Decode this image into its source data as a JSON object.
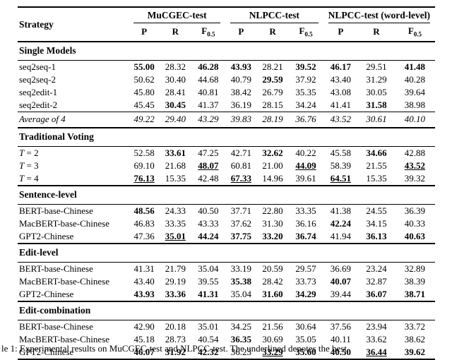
{
  "page": {
    "background": "#ffffff",
    "text_color": "#000000"
  },
  "table": {
    "strategy_header": "Strategy",
    "groups": [
      {
        "label": "MuCGEC-test"
      },
      {
        "label": "NLPCC-test"
      },
      {
        "label": "NLPCC-test (word-level)"
      }
    ],
    "metrics": [
      {
        "t": "P"
      },
      {
        "t": "R"
      },
      {
        "t": "F",
        "sub": "0.5"
      }
    ],
    "sections": [
      {
        "title": "Single Models",
        "rows": [
          {
            "label": "seq2seq-1",
            "values": [
              "55.00",
              "28.32",
              "46.28",
              "43.93",
              "28.21",
              "39.52",
              "46.17",
              "29.51",
              "41.48"
            ],
            "styles": [
              "b",
              "",
              "b",
              "b",
              "",
              "b",
              "b",
              "",
              "b"
            ]
          },
          {
            "label": "seq2seq-2",
            "values": [
              "50.62",
              "30.40",
              "44.68",
              "40.79",
              "29.59",
              "37.92",
              "43.40",
              "31.29",
              "40.28"
            ],
            "styles": [
              "",
              "",
              "",
              "",
              "b",
              "",
              "",
              "",
              ""
            ]
          },
          {
            "label": "seq2edit-1",
            "values": [
              "45.80",
              "28.41",
              "40.81",
              "38.42",
              "26.79",
              "35.35",
              "43.08",
              "30.05",
              "39.64"
            ],
            "styles": [
              "",
              "",
              "",
              "",
              "",
              "",
              "",
              "",
              ""
            ]
          },
          {
            "label": "seq2edit-2",
            "values": [
              "45.45",
              "30.45",
              "41.37",
              "36.19",
              "28.15",
              "34.24",
              "41.41",
              "31.58",
              "38.98"
            ],
            "styles": [
              "",
              "b",
              "",
              "",
              "",
              "",
              "",
              "b",
              ""
            ]
          }
        ]
      },
      {
        "title": "",
        "italic": true,
        "rows": [
          {
            "label": "Average of 4",
            "values": [
              "49.22",
              "29.40",
              "43.29",
              "39.83",
              "28.19",
              "36.76",
              "43.52",
              "30.61",
              "40.10"
            ],
            "styles": [
              "",
              "",
              "",
              "",
              "",
              "",
              "",
              "",
              ""
            ]
          }
        ]
      },
      {
        "title": "Traditional Voting",
        "rows": [
          {
            "label": "T = 2",
            "math": true,
            "values": [
              "52.58",
              "33.61",
              "47.25",
              "42.71",
              "32.62",
              "40.22",
              "45.58",
              "34.66",
              "42.88"
            ],
            "styles": [
              "",
              "b",
              "",
              "",
              "b",
              "",
              "",
              "b",
              ""
            ]
          },
          {
            "label": "T = 3",
            "math": true,
            "values": [
              "69.10",
              "21.68",
              "48.07",
              "60.81",
              "21.00",
              "44.09",
              "58.39",
              "21.55",
              "43.52"
            ],
            "styles": [
              "",
              "",
              "bu",
              "",
              "",
              "bu",
              "",
              "",
              "bu"
            ]
          },
          {
            "label": "T = 4",
            "math": true,
            "values": [
              "76.13",
              "15.35",
              "42.48",
              "67.33",
              "14.96",
              "39.61",
              "64.51",
              "15.35",
              "39.32"
            ],
            "styles": [
              "bu",
              "",
              "",
              "bu",
              "",
              "",
              "bu",
              "",
              ""
            ]
          }
        ]
      },
      {
        "title": "Sentence-level",
        "rows": [
          {
            "label": "BERT-base-Chinese",
            "values": [
              "48.56",
              "24.33",
              "40.50",
              "37.71",
              "22.80",
              "33.35",
              "41.38",
              "24.55",
              "36.39"
            ],
            "styles": [
              "b",
              "",
              "",
              "",
              "",
              "",
              "",
              "",
              ""
            ]
          },
          {
            "label": "MacBERT-base-Chinese",
            "values": [
              "46.83",
              "33.35",
              "43.33",
              "37.62",
              "31.30",
              "36.16",
              "42.24",
              "34.15",
              "40.33"
            ],
            "styles": [
              "",
              "",
              "",
              "",
              "",
              "",
              "b",
              "",
              ""
            ]
          },
          {
            "label": "GPT2-Chinese",
            "values": [
              "47.36",
              "35.01",
              "44.24",
              "37.75",
              "33.20",
              "36.74",
              "41.94",
              "36.13",
              "40.63"
            ],
            "styles": [
              "",
              "bu",
              "b",
              "b",
              "b",
              "b",
              "",
              "b",
              "b"
            ]
          }
        ]
      },
      {
        "title": "Edit-level",
        "rows": [
          {
            "label": "BERT-base-Chinese",
            "values": [
              "41.31",
              "21.79",
              "35.04",
              "33.19",
              "20.59",
              "29.57",
              "36.69",
              "23.24",
              "32.89"
            ],
            "styles": [
              "",
              "",
              "",
              "",
              "",
              "",
              "",
              "",
              ""
            ]
          },
          {
            "label": "MacBERT-base-Chinese",
            "values": [
              "43.40",
              "29.19",
              "39.55",
              "35.38",
              "28.42",
              "33.73",
              "40.07",
              "32.87",
              "38.39"
            ],
            "styles": [
              "",
              "",
              "",
              "b",
              "",
              "",
              "b",
              "",
              ""
            ]
          },
          {
            "label": "GPT2-Chinese",
            "values": [
              "43.93",
              "33.36",
              "41.31",
              "35.04",
              "31.60",
              "34.29",
              "39.44",
              "36.07",
              "38.71"
            ],
            "styles": [
              "b",
              "b",
              "b",
              "",
              "b",
              "b",
              "",
              "b",
              "b"
            ]
          }
        ]
      },
      {
        "title": "Edit-combination",
        "rows": [
          {
            "label": "BERT-base-Chinese",
            "values": [
              "42.90",
              "20.18",
              "35.01",
              "34.25",
              "21.56",
              "30.64",
              "37.56",
              "23.94",
              "33.72"
            ],
            "styles": [
              "",
              "",
              "",
              "",
              "",
              "",
              "",
              "",
              ""
            ]
          },
          {
            "label": "MacBERT-base-Chinese",
            "values": [
              "45.18",
              "28.73",
              "40.54",
              "36.35",
              "30.69",
              "35.05",
              "40.11",
              "33.62",
              "38.62"
            ],
            "styles": [
              "",
              "",
              "",
              "b",
              "",
              "",
              "",
              "",
              ""
            ]
          },
          {
            "label": "GPT2-Chinese",
            "values": [
              "46.07",
              "31.92",
              "42.32",
              "36.23",
              "33.29",
              "35.60",
              "40.50",
              "36.44",
              "39.62"
            ],
            "styles": [
              "b",
              "b",
              "b",
              "",
              "bu",
              "b",
              "b",
              "bu",
              "b"
            ]
          }
        ]
      }
    ]
  },
  "caption": {
    "text": "le 1: Experimental results on MuCGEC-test and NLPCC-test.  The underlined denotes the best"
  }
}
